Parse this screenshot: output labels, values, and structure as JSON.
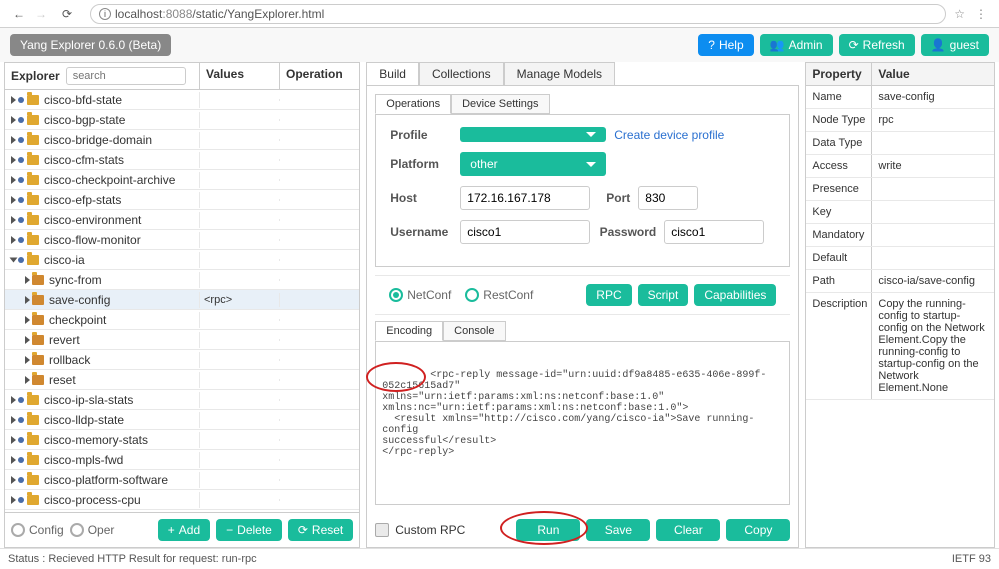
{
  "browser": {
    "url_prefix": "localhost",
    "url_port": ":8088",
    "url_path": "/static/YangExplorer.html"
  },
  "app_title": "Yang Explorer 0.6.0 (Beta)",
  "top_buttons": {
    "help": "Help",
    "admin": "Admin",
    "refresh": "Refresh",
    "guest": "guest"
  },
  "explorer": {
    "header_explorer": "Explorer",
    "header_values": "Values",
    "header_operation": "Operation",
    "search_placeholder": "search",
    "items": [
      {
        "name": "cisco-bfd-state",
        "lvl": 0,
        "open": false,
        "type": "mod"
      },
      {
        "name": "cisco-bgp-state",
        "lvl": 0,
        "open": false,
        "type": "mod"
      },
      {
        "name": "cisco-bridge-domain",
        "lvl": 0,
        "open": false,
        "type": "mod"
      },
      {
        "name": "cisco-cfm-stats",
        "lvl": 0,
        "open": false,
        "type": "mod"
      },
      {
        "name": "cisco-checkpoint-archive",
        "lvl": 0,
        "open": false,
        "type": "mod"
      },
      {
        "name": "cisco-efp-stats",
        "lvl": 0,
        "open": false,
        "type": "mod"
      },
      {
        "name": "cisco-environment",
        "lvl": 0,
        "open": false,
        "type": "mod"
      },
      {
        "name": "cisco-flow-monitor",
        "lvl": 0,
        "open": false,
        "type": "mod"
      },
      {
        "name": "cisco-ia",
        "lvl": 0,
        "open": true,
        "type": "mod"
      },
      {
        "name": "sync-from",
        "lvl": 1,
        "open": false,
        "type": "rpc"
      },
      {
        "name": "save-config",
        "lvl": 1,
        "open": false,
        "type": "rpc",
        "value": "<rpc>",
        "selected": true
      },
      {
        "name": "checkpoint",
        "lvl": 1,
        "open": false,
        "type": "rpc"
      },
      {
        "name": "revert",
        "lvl": 1,
        "open": false,
        "type": "rpc"
      },
      {
        "name": "rollback",
        "lvl": 1,
        "open": false,
        "type": "rpc"
      },
      {
        "name": "reset",
        "lvl": 1,
        "open": false,
        "type": "rpc"
      },
      {
        "name": "cisco-ip-sla-stats",
        "lvl": 0,
        "open": false,
        "type": "mod"
      },
      {
        "name": "cisco-lldp-state",
        "lvl": 0,
        "open": false,
        "type": "mod"
      },
      {
        "name": "cisco-memory-stats",
        "lvl": 0,
        "open": false,
        "type": "mod"
      },
      {
        "name": "cisco-mpls-fwd",
        "lvl": 0,
        "open": false,
        "type": "mod"
      },
      {
        "name": "cisco-platform-software",
        "lvl": 0,
        "open": false,
        "type": "mod"
      },
      {
        "name": "cisco-process-cpu",
        "lvl": 0,
        "open": false,
        "type": "mod"
      }
    ]
  },
  "left_actions": {
    "config": "Config",
    "oper": "Oper",
    "add": "Add",
    "delete": "Delete",
    "reset": "Reset"
  },
  "main_tabs": {
    "build": "Build",
    "collections": "Collections",
    "manage": "Manage Models"
  },
  "sub_tabs": {
    "operations": "Operations",
    "device": "Device Settings"
  },
  "form": {
    "profile_label": "Profile",
    "profile_value": "",
    "create_link": "Create device profile",
    "platform_label": "Platform",
    "platform_value": "other",
    "host_label": "Host",
    "host_value": "172.16.167.178",
    "port_label": "Port",
    "port_value": "830",
    "username_label": "Username",
    "username_value": "cisco1",
    "password_label": "Password",
    "password_value": "cisco1"
  },
  "protocol": {
    "netconf": "NetConf",
    "restconf": "RestConf",
    "rpc": "RPC",
    "script": "Script",
    "capabilities": "Capabilities"
  },
  "enc_tabs": {
    "encoding": "Encoding",
    "console": "Console"
  },
  "output_text": "<rpc-reply message-id=\"urn:uuid:df9a8485-e635-406e-899f-052c15615ad7\"\nxmlns=\"urn:ietf:params:xml:ns:netconf:base:1.0\"\nxmlns:nc=\"urn:ietf:params:xml:ns:netconf:base:1.0\">\n  <result xmlns=\"http://cisco.com/yang/cisco-ia\">Save running-config\nsuccessful</result>\n</rpc-reply>",
  "bottom_actions": {
    "custom_rpc": "Custom RPC",
    "run": "Run",
    "save": "Save",
    "clear": "Clear",
    "copy": "Copy"
  },
  "properties": {
    "header_prop": "Property",
    "header_val": "Value",
    "rows": [
      {
        "k": "Name",
        "v": "save-config"
      },
      {
        "k": "Node Type",
        "v": "rpc"
      },
      {
        "k": "Data Type",
        "v": ""
      },
      {
        "k": "Access",
        "v": "write"
      },
      {
        "k": "Presence",
        "v": ""
      },
      {
        "k": "Key",
        "v": ""
      },
      {
        "k": "Mandatory",
        "v": ""
      },
      {
        "k": "Default",
        "v": ""
      },
      {
        "k": "Path",
        "v": "cisco-ia/save-config"
      },
      {
        "k": "Description",
        "v": "Copy the running-config to startup-config on the Network Element.Copy the running-config to startup-config on the Network Element.None"
      }
    ]
  },
  "status": {
    "text": "Status : Recieved HTTP Result for request: run-rpc",
    "right": "IETF 93"
  },
  "colors": {
    "teal": "#1abc9c",
    "blue": "#0d8df0"
  }
}
